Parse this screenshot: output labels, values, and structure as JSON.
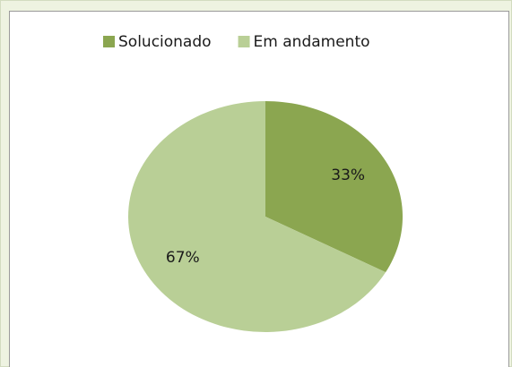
{
  "chart_data": {
    "type": "pie",
    "categories": [
      "Solucionado",
      "Em andamento"
    ],
    "values": [
      33,
      67
    ],
    "value_labels": [
      "33%",
      "67%"
    ],
    "colors": [
      "#8ba650",
      "#b9cf96"
    ],
    "legend": "top"
  }
}
